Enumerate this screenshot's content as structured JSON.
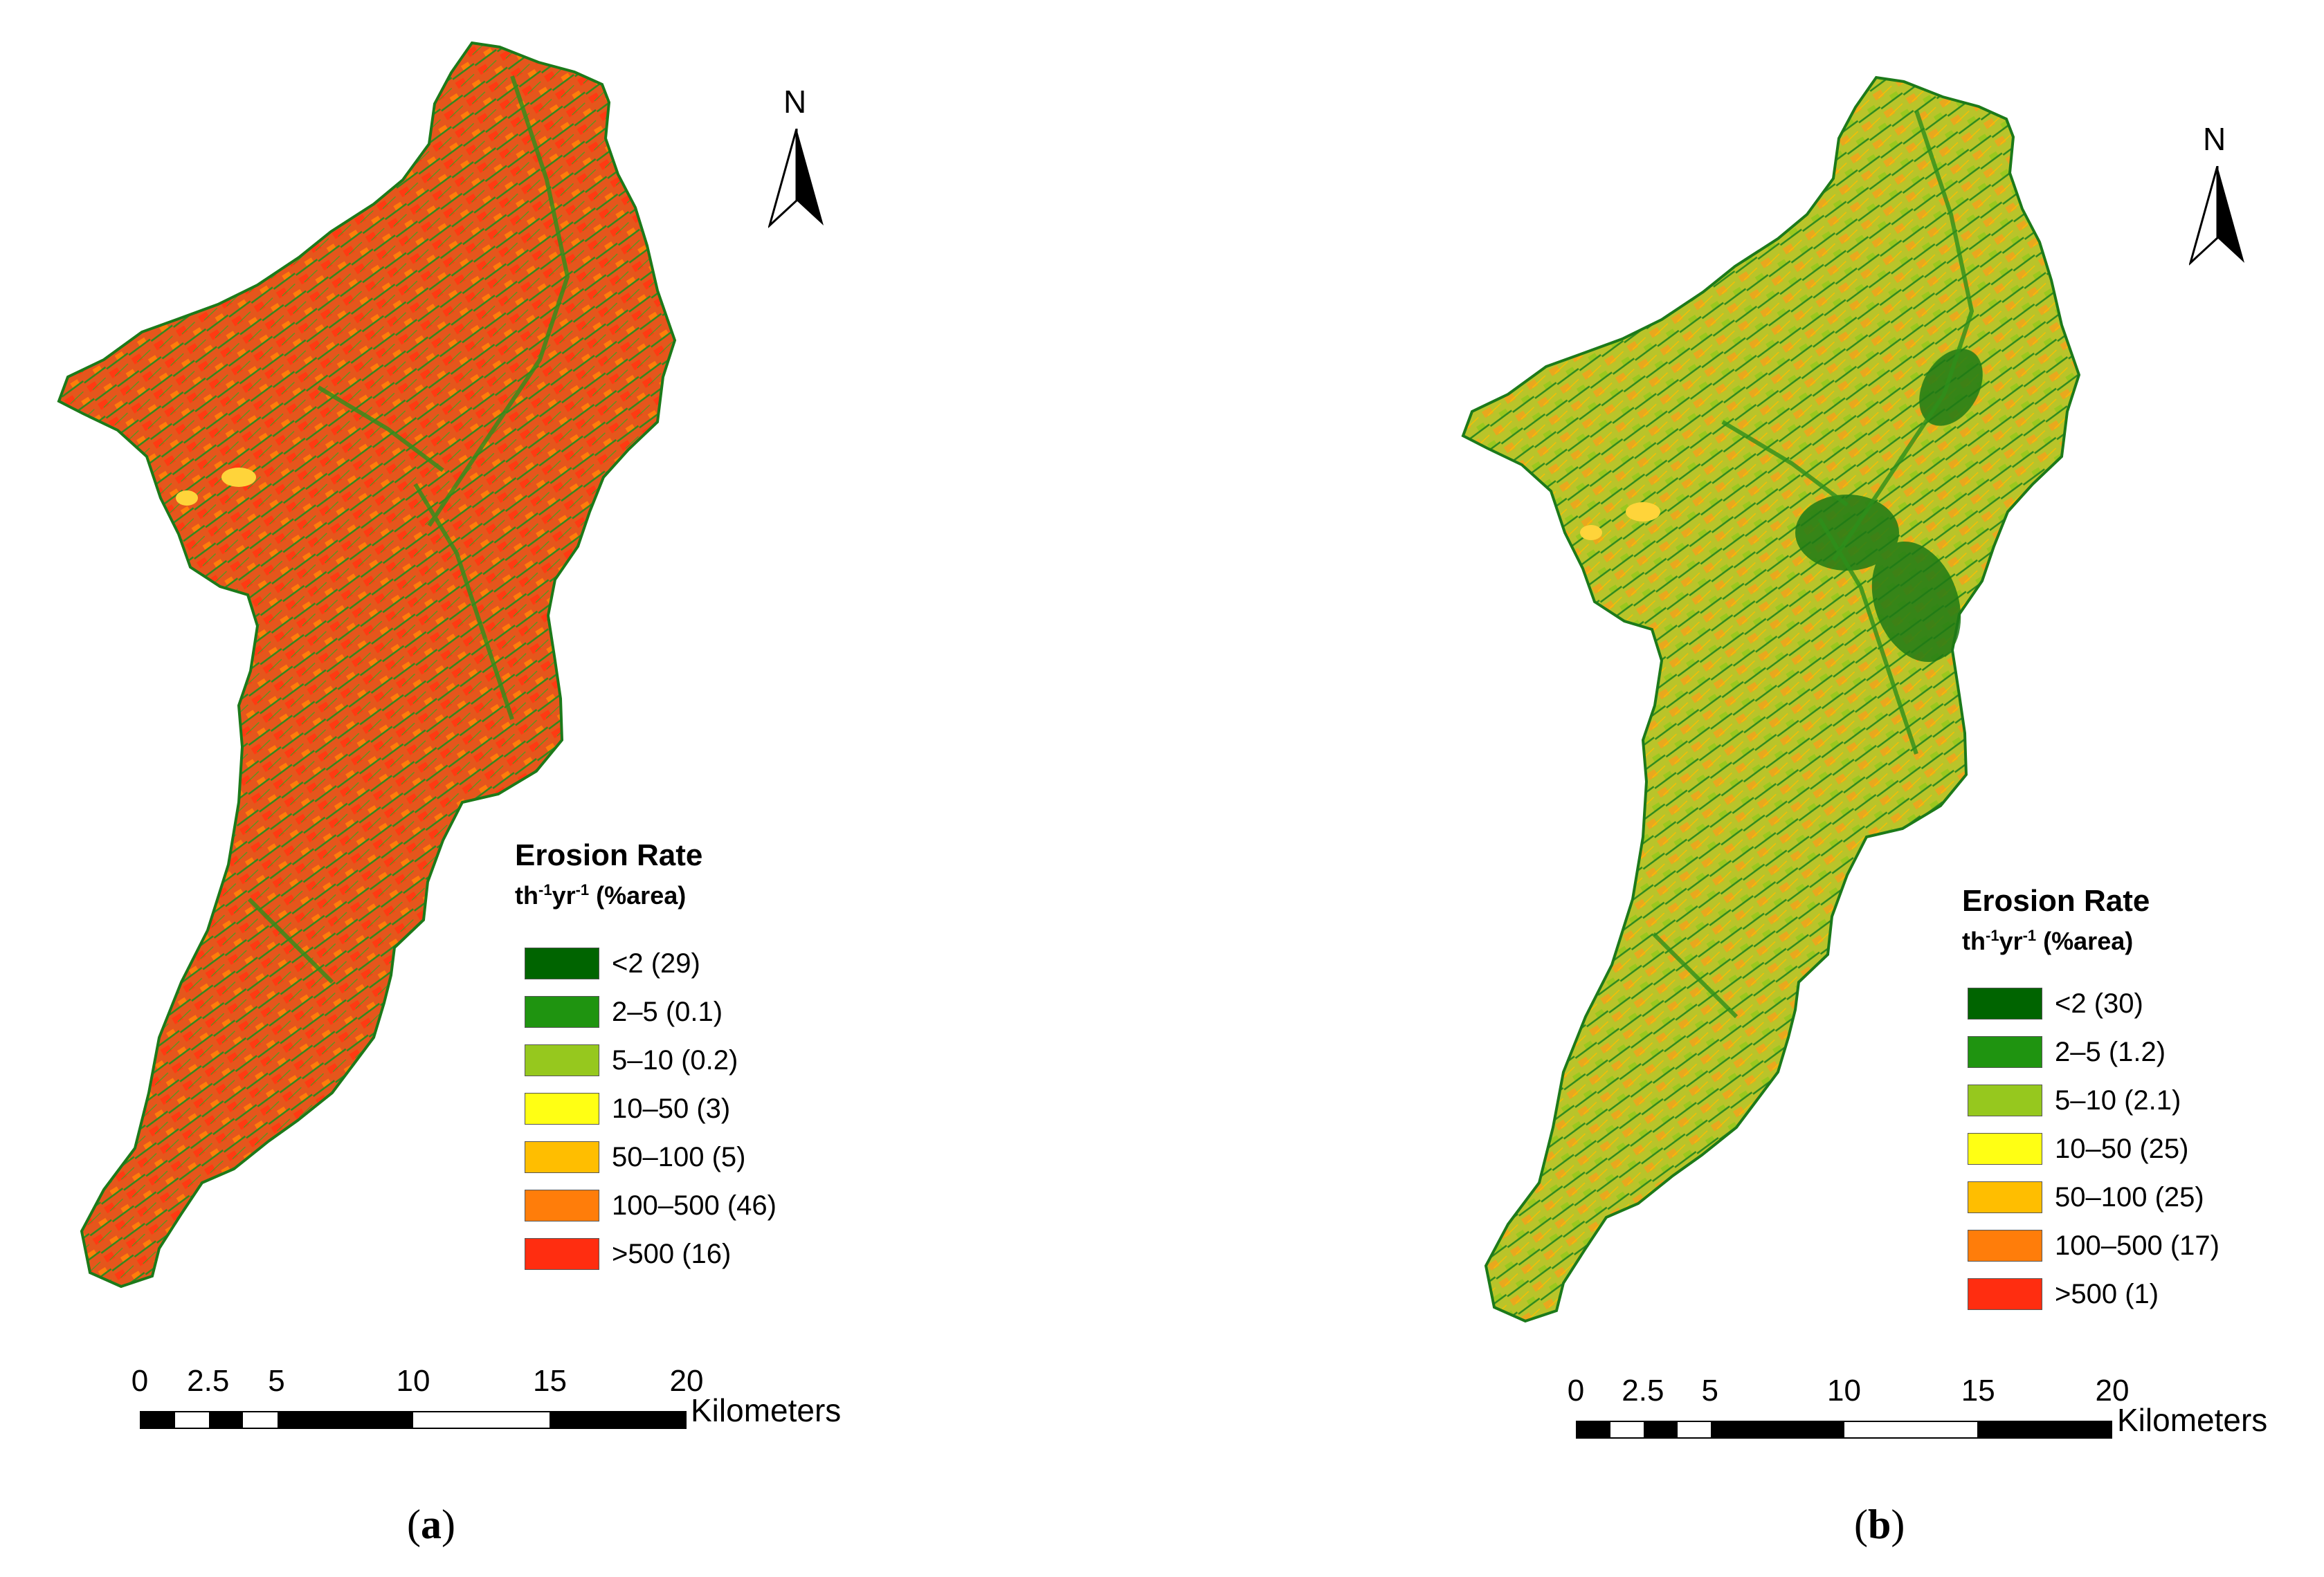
{
  "legend_colors": [
    "#006400",
    "#1f9410",
    "#96c81e",
    "#ffff14",
    "#ffbe00",
    "#ff7d0a",
    "#ff2d10"
  ],
  "panels": [
    {
      "north": "N",
      "legend_title": "Erosion Rate",
      "legend_unit": {
        "t": "t",
        "ha": "h",
        "sup1": "-1",
        "yr": "yr",
        "sup2": "-1",
        "tail": " (%area)"
      },
      "classes": [
        {
          "label": "<2 (29)",
          "range": "<2",
          "percent_area": 29
        },
        {
          "label": "2–5 (0.1)",
          "range": "2–5",
          "percent_area": 0.1
        },
        {
          "label": "5–10 (0.2)",
          "range": "5–10",
          "percent_area": 0.2
        },
        {
          "label": "10–50 (3)",
          "range": "10–50",
          "percent_area": 3
        },
        {
          "label": "50–100 (5)",
          "range": "50–100",
          "percent_area": 5
        },
        {
          "label": "100–500 (46)",
          "range": "100–500",
          "percent_area": 46
        },
        {
          "label": ">500 (16)",
          "range": ">500",
          "percent_area": 16
        }
      ],
      "scale_ticks": [
        "0",
        "2.5",
        "5",
        "10",
        "15",
        "20"
      ],
      "scale_unit": "Kilometers",
      "caption_open": "(",
      "caption_letter": "a",
      "caption_close": ")",
      "dominant_color": "#e8521a"
    },
    {
      "north": "N",
      "legend_title": "Erosion Rate",
      "legend_unit": {
        "t": "t",
        "ha": "h",
        "sup1": "-1",
        "yr": "yr",
        "sup2": "-1",
        "tail": " (%area)"
      },
      "classes": [
        {
          "label": "<2 (30)",
          "range": "<2",
          "percent_area": 30
        },
        {
          "label": "2–5 (1.2)",
          "range": "2–5",
          "percent_area": 1.2
        },
        {
          "label": "5–10 (2.1)",
          "range": "5–10",
          "percent_area": 2.1
        },
        {
          "label": "10–50 (25)",
          "range": "10–50",
          "percent_area": 25
        },
        {
          "label": "50–100 (25)",
          "range": "50–100",
          "percent_area": 25
        },
        {
          "label": "100–500 (17)",
          "range": "100–500",
          "percent_area": 17
        },
        {
          "label": ">500 (1)",
          "range": ">500",
          "percent_area": 1
        }
      ],
      "scale_ticks": [
        "0",
        "2.5",
        "5",
        "10",
        "15",
        "20"
      ],
      "scale_unit": "Kilometers",
      "caption_open": "(",
      "caption_letter": "b",
      "caption_close": ")",
      "dominant_color": "#b6c62a"
    }
  ]
}
